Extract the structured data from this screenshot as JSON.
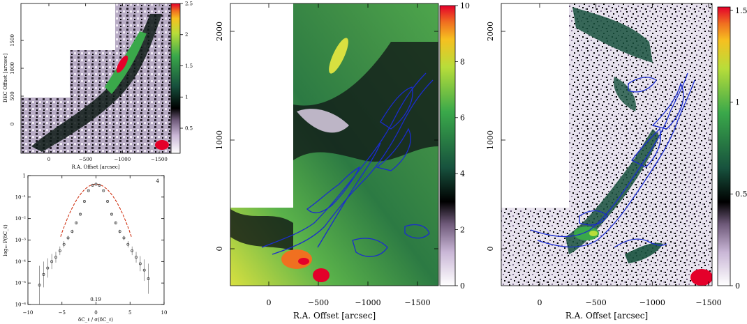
{
  "panels": {
    "top_left": {
      "xlabel": "R.A. Offset  [arcsec]",
      "ylabel": "DEC Offset  [arcsec]",
      "xticks": [
        "0",
        "−500",
        "−1000",
        "−1500"
      ],
      "yticks": [
        "0",
        "500",
        "1000",
        "1500"
      ],
      "colorbar_ticks": [
        "0.5",
        "1",
        "1.5",
        "2",
        "2.5"
      ]
    },
    "middle": {
      "xlabel": "R.A. Offset  [arcsec]",
      "xticks": [
        "0",
        "−500",
        "−1000",
        "−1500"
      ],
      "yticks": [
        "0",
        "1000",
        "2000"
      ],
      "colorbar_ticks": [
        "0",
        "2",
        "4",
        "6",
        "8",
        "10"
      ]
    },
    "right": {
      "xlabel": "R.A. Offset  [arcsec]",
      "xticks": [
        "0",
        "−500",
        "−1000",
        "−1500"
      ],
      "yticks": [
        "0",
        "1000",
        "2000"
      ],
      "colorbar_ticks": [
        "0",
        "0.5",
        "1",
        "1.5"
      ]
    }
  },
  "chart_data": {
    "type": "scatter",
    "panel_label": "4",
    "annotation": "0.19",
    "xlabel": "δC_ℓ / σ(δC_ℓ)",
    "ylabel": "log₁₀ P(δC_ℓ)",
    "xlim": [
      -10,
      10
    ],
    "ylim": [
      -6,
      0
    ],
    "x_tick_labels": [
      "−10",
      "−5",
      "0",
      "5",
      "10"
    ],
    "y_tick_labels": [
      "10⁻⁶",
      "10⁻⁵",
      "10⁻⁴",
      "10⁻³",
      "10⁻²",
      "10⁻¹",
      "1"
    ],
    "series": [
      {
        "kind": "points",
        "x": [
          -8.3,
          -7.7,
          -7.1,
          -6.5,
          -5.9,
          -5.3,
          -4.7,
          -4.1,
          -3.5,
          -2.9,
          -2.3,
          -1.7,
          -1.1,
          -0.5,
          0.0,
          0.5,
          1.1,
          1.7,
          2.3,
          2.9,
          3.5,
          4.1,
          4.7,
          5.3,
          5.9,
          6.5,
          7.1,
          7.7
        ],
        "y": [
          -5.1,
          -4.6,
          -4.3,
          -4.0,
          -3.8,
          -3.5,
          -3.2,
          -2.9,
          -2.6,
          -2.2,
          -1.8,
          -1.2,
          -0.7,
          -0.45,
          -0.4,
          -0.45,
          -0.7,
          -1.2,
          -1.8,
          -2.2,
          -2.6,
          -2.9,
          -3.2,
          -3.5,
          -3.8,
          -4.1,
          -4.4,
          -4.8
        ],
        "err": [
          0.9,
          0.6,
          0.45,
          0.35,
          0.25,
          0.2,
          0.15,
          0.1,
          0.08,
          0.06,
          0.04,
          0.03,
          0.02,
          0.02,
          0.02,
          0.02,
          0.02,
          0.03,
          0.04,
          0.06,
          0.08,
          0.1,
          0.15,
          0.2,
          0.25,
          0.35,
          0.5,
          0.7
        ]
      },
      {
        "kind": "gaussian",
        "sigma": 1.55,
        "peak_log": -0.4,
        "color": "#cc2200"
      }
    ]
  }
}
